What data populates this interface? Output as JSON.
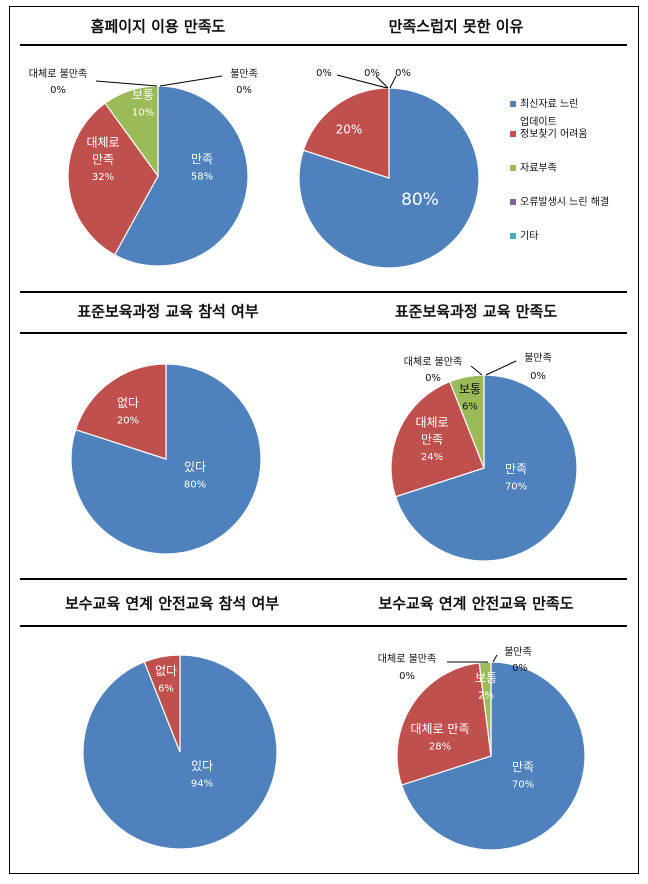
{
  "colors": {
    "blue": "#4F81BD",
    "red": "#C0504D",
    "green": "#9BBB59",
    "purple": "#8064A2",
    "teal": "#4BACC6",
    "rule": "#000000",
    "label_light": "#ffffff",
    "label_dark": "#111111"
  },
  "chart_data": [
    {
      "type": "pie",
      "title": "홈페이지 이용 만족도",
      "slices": [
        {
          "name": "만족",
          "label": "만족",
          "pct_label": "58%",
          "value": 58,
          "color": "blue",
          "label_color": "light"
        },
        {
          "name": "대체로 만족",
          "label": "대체로\n만족",
          "pct_label": "32%",
          "value": 32,
          "color": "red",
          "label_color": "light"
        },
        {
          "name": "보통",
          "label": "보통",
          "pct_label": "10%",
          "value": 10,
          "color": "green",
          "label_color": "light"
        },
        {
          "name": "대체로 불만족",
          "label": "대체로 불만족",
          "pct_label": "0%",
          "value": 0,
          "color": "purple",
          "label_color": "dark"
        },
        {
          "name": "불만족",
          "label": "불만족",
          "pct_label": "0%",
          "value": 0,
          "color": "teal",
          "label_color": "dark"
        }
      ]
    },
    {
      "type": "pie",
      "title": "만족스럽지 못한 이유",
      "slices": [
        {
          "name": "최신자료 느린 업데이트",
          "label": "",
          "pct_label": "80%",
          "value": 80,
          "color": "blue",
          "label_color": "light"
        },
        {
          "name": "정보찾기 어려움",
          "label": "",
          "pct_label": "20%",
          "value": 20,
          "color": "red",
          "label_color": "light"
        },
        {
          "name": "자료부족",
          "label": "",
          "pct_label": "0%",
          "value": 0,
          "color": "green",
          "label_color": "dark"
        },
        {
          "name": "오류발생시 느린 해결",
          "label": "",
          "pct_label": "0%",
          "value": 0,
          "color": "purple",
          "label_color": "dark"
        },
        {
          "name": "기타",
          "label": "",
          "pct_label": "0%",
          "value": 0,
          "color": "teal",
          "label_color": "dark"
        }
      ],
      "legend": {
        "position": "right",
        "items": [
          "최신자료 느린\n업데이트",
          "정보찾기 어려움",
          "자료부족",
          "오류발생시 느린 해결",
          "기타"
        ],
        "colors": [
          "blue",
          "red",
          "green",
          "purple",
          "teal"
        ]
      }
    },
    {
      "type": "pie",
      "title": "표준보육과정 교육 참석 여부",
      "slices": [
        {
          "name": "있다",
          "label": "있다",
          "pct_label": "80%",
          "value": 80,
          "color": "blue",
          "label_color": "light"
        },
        {
          "name": "없다",
          "label": "없다",
          "pct_label": "20%",
          "value": 20,
          "color": "red",
          "label_color": "light"
        }
      ]
    },
    {
      "type": "pie",
      "title": "표준보육과정 교육 만족도",
      "slices": [
        {
          "name": "만족",
          "label": "만족",
          "pct_label": "70%",
          "value": 70,
          "color": "blue",
          "label_color": "light"
        },
        {
          "name": "대체로 만족",
          "label": "대체로\n만족",
          "pct_label": "24%",
          "value": 24,
          "color": "red",
          "label_color": "light"
        },
        {
          "name": "보통",
          "label": "보통",
          "pct_label": "6%",
          "value": 6,
          "color": "green",
          "label_color": "dark"
        },
        {
          "name": "대체로 불만족",
          "label": "대체로 불만족",
          "pct_label": "0%",
          "value": 0,
          "color": "purple",
          "label_color": "dark"
        },
        {
          "name": "불만족",
          "label": "불만족",
          "pct_label": "0%",
          "value": 0,
          "color": "teal",
          "label_color": "dark"
        }
      ]
    },
    {
      "type": "pie",
      "title": "보수교육 연계 안전교육 참석 여부",
      "slices": [
        {
          "name": "있다",
          "label": "있다",
          "pct_label": "94%",
          "value": 94,
          "color": "blue",
          "label_color": "light"
        },
        {
          "name": "없다",
          "label": "없다",
          "pct_label": "6%",
          "value": 6,
          "color": "red",
          "label_color": "light"
        }
      ]
    },
    {
      "type": "pie",
      "title": "보수교육 연계 안전교육 만족도",
      "slices": [
        {
          "name": "만족",
          "label": "만족",
          "pct_label": "70%",
          "value": 70,
          "color": "blue",
          "label_color": "light"
        },
        {
          "name": "대체로 만족",
          "label": "대체로 만족",
          "pct_label": "28%",
          "value": 28,
          "color": "red",
          "label_color": "light"
        },
        {
          "name": "보통",
          "label": "보통",
          "pct_label": "2%",
          "value": 2,
          "color": "green",
          "label_color": "light"
        },
        {
          "name": "대체로 불만족",
          "label": "대체로 불만족",
          "pct_label": "0%",
          "value": 0,
          "color": "purple",
          "label_color": "dark"
        },
        {
          "name": "불만족",
          "label": "불만족",
          "pct_label": "0%",
          "value": 0,
          "color": "teal",
          "label_color": "dark"
        }
      ]
    }
  ]
}
